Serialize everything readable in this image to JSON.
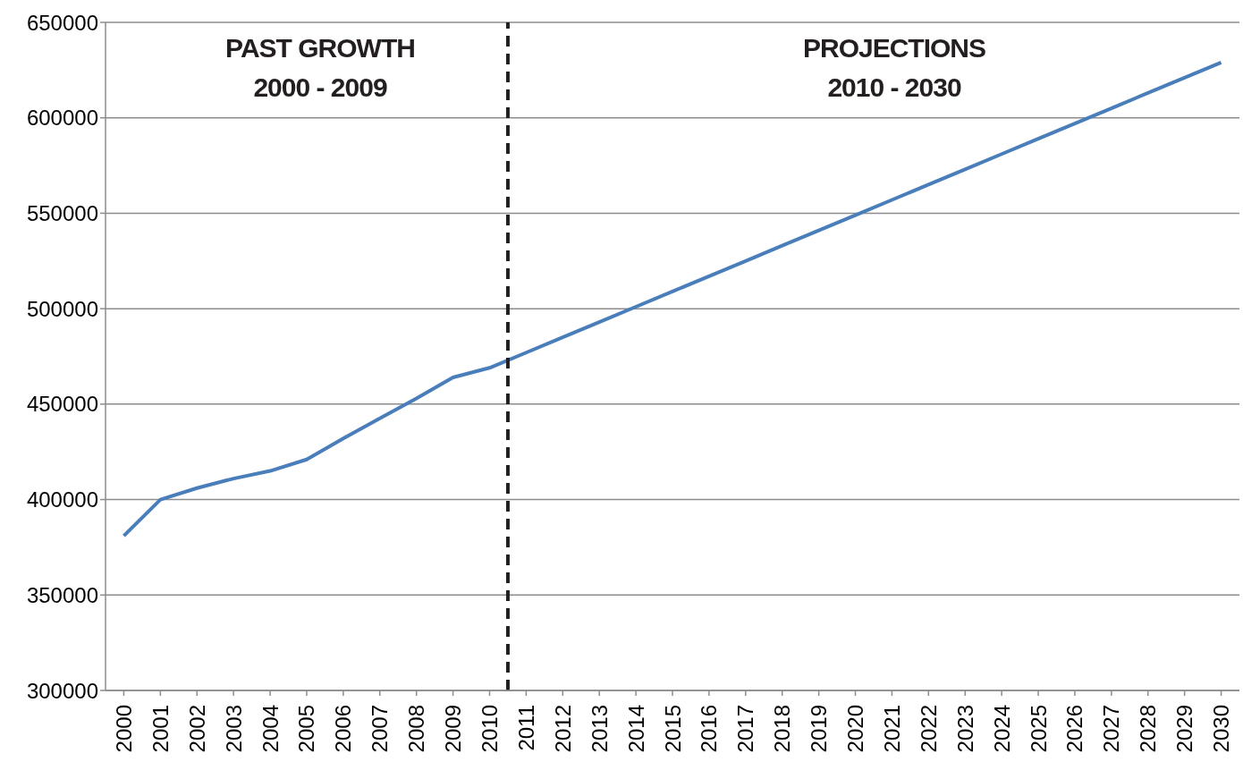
{
  "chart_data": {
    "type": "line",
    "x": [
      2000,
      2001,
      2002,
      2003,
      2004,
      2005,
      2006,
      2007,
      2008,
      2009,
      2010,
      2011,
      2012,
      2013,
      2014,
      2015,
      2016,
      2017,
      2018,
      2019,
      2020,
      2021,
      2022,
      2023,
      2024,
      2025,
      2026,
      2027,
      2028,
      2029,
      2030
    ],
    "series": [
      {
        "color": "#4a7ebb",
        "values": [
          381000,
          400000,
          406000,
          411000,
          415000,
          421000,
          432000,
          442500,
          453000,
          464000,
          469000,
          477000,
          485000,
          493000,
          501000,
          509000,
          517000,
          525000,
          533000,
          541000,
          549000,
          557000,
          565000,
          573000,
          581000,
          589000,
          597000,
          605000,
          613000,
          621000,
          629000
        ]
      }
    ],
    "xlim": [
      1999.5,
      2030.5
    ],
    "xticks": [
      2000,
      2001,
      2002,
      2003,
      2004,
      2005,
      2006,
      2007,
      2008,
      2009,
      2010,
      2011,
      2012,
      2013,
      2014,
      2015,
      2016,
      2017,
      2018,
      2019,
      2020,
      2021,
      2022,
      2023,
      2024,
      2025,
      2026,
      2027,
      2028,
      2029,
      2030
    ],
    "ylim": [
      300000,
      650000
    ],
    "yticks": [
      300000,
      350000,
      400000,
      450000,
      500000,
      550000,
      600000,
      650000
    ],
    "grid": "y",
    "marker": "none",
    "line_style": "solid",
    "legend": false,
    "ref_lines": [
      {
        "axis": "x",
        "value": 2010.5,
        "color": "#231f20",
        "line_style": "dashed"
      }
    ],
    "annotations": [
      "PAST GROWTH\n2000 - 2009",
      "PROJECTIONS\n2010 - 2030"
    ]
  }
}
